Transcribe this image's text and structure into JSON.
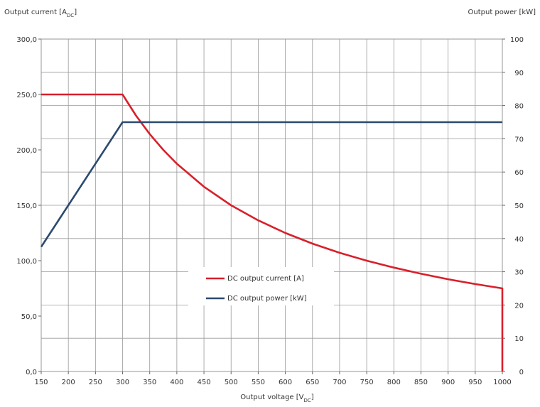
{
  "chart_data": {
    "type": "line",
    "title": "",
    "xlabel": "Output voltage [V",
    "xlabel_sub": "DC",
    "xlabel_end": "]",
    "ylabel_left": "Output current [A",
    "ylabel_left_sub": "DC",
    "ylabel_left_end": "]",
    "ylabel_right": "Output power [kW]",
    "xlim": [
      150,
      1000
    ],
    "ylim_left": [
      0,
      300
    ],
    "ylim_right": [
      0,
      100
    ],
    "x_ticks": [
      150,
      200,
      250,
      300,
      350,
      400,
      450,
      500,
      550,
      600,
      650,
      700,
      750,
      800,
      850,
      900,
      950,
      1000
    ],
    "y_left_ticks": [
      {
        "value": 0,
        "label": "0,0"
      },
      {
        "value": 50,
        "label": "50,0"
      },
      {
        "value": 100,
        "label": "100,0"
      },
      {
        "value": 150,
        "label": "150,0"
      },
      {
        "value": 200,
        "label": "200,0"
      },
      {
        "value": 250,
        "label": "250,0"
      },
      {
        "value": 300,
        "label": "300,0"
      }
    ],
    "y_right_ticks": [
      0,
      10,
      20,
      30,
      40,
      50,
      60,
      70,
      80,
      90,
      100
    ],
    "grid": true,
    "legend_position": "lower-center",
    "series": [
      {
        "name": "DC output current [A]",
        "axis": "left",
        "color": "#d8202a",
        "x": [
          150,
          300,
          325,
          350,
          375,
          400,
          450,
          500,
          550,
          600,
          650,
          700,
          750,
          800,
          850,
          900,
          950,
          1000,
          1000
        ],
        "values": [
          250,
          250,
          230.8,
          214.3,
          200,
          187.5,
          166.7,
          150,
          136.4,
          125,
          115.4,
          107.1,
          100,
          93.8,
          88.2,
          83.3,
          78.9,
          75,
          0
        ]
      },
      {
        "name": "DC output power [kW]",
        "axis": "right",
        "color": "#2b4a6f",
        "x": [
          150,
          300,
          1000
        ],
        "values": [
          37.5,
          75,
          75
        ]
      }
    ]
  }
}
